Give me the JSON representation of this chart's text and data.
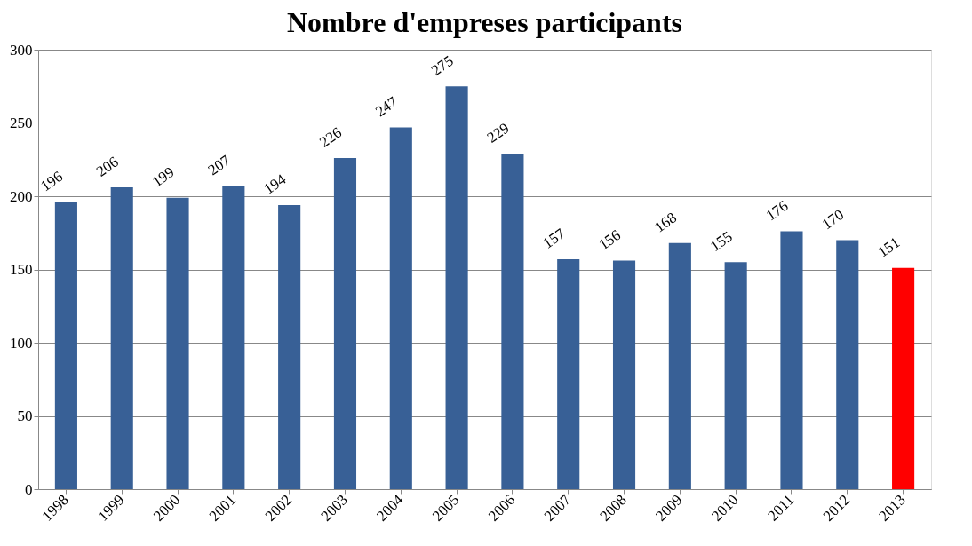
{
  "chart_data": {
    "type": "bar",
    "title": "Nombre d'empreses participants",
    "categories": [
      "1998",
      "1999",
      "2000",
      "2001",
      "2002",
      "2003",
      "2004",
      "2005",
      "2006",
      "2007",
      "2008",
      "2009",
      "2010",
      "2011",
      "2012",
      "2013"
    ],
    "values": [
      196,
      206,
      199,
      207,
      194,
      226,
      247,
      275,
      229,
      157,
      156,
      168,
      155,
      176,
      170,
      151
    ],
    "colors": [
      "#386096",
      "#386096",
      "#386096",
      "#386096",
      "#386096",
      "#386096",
      "#386096",
      "#386096",
      "#386096",
      "#386096",
      "#386096",
      "#386096",
      "#386096",
      "#386096",
      "#386096",
      "#ff0000"
    ],
    "ylim": [
      0,
      300
    ],
    "yticks": [
      0,
      50,
      100,
      150,
      200,
      250,
      300
    ],
    "grid": "y",
    "data_labels": true
  }
}
